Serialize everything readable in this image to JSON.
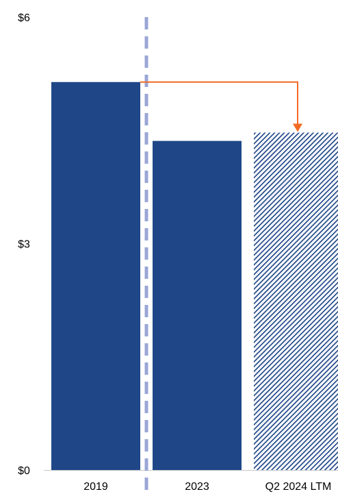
{
  "chart_data": {
    "type": "bar",
    "categories": [
      "2019",
      "2023",
      "Q2 2024 LTM"
    ],
    "values": [
      5.14,
      4.36,
      4.47
    ],
    "bar_styles": [
      "solid",
      "solid",
      "hatched"
    ],
    "ylim": [
      0,
      6
    ],
    "yticks": [
      {
        "value": 0,
        "label": "$0"
      },
      {
        "value": 3,
        "label": "$3"
      },
      {
        "value": 6,
        "label": "$6"
      }
    ],
    "grid": false,
    "annotations": [
      {
        "type": "divider",
        "style": "dashed",
        "between": [
          "2019",
          "2023"
        ]
      },
      {
        "type": "arrow",
        "from": "2019",
        "to": "Q2 2024 LTM"
      }
    ],
    "colors": {
      "bar": "#1f4788",
      "divider": "#9aa6d6",
      "arrow": "#f26a21",
      "axis": "#c8c8c8"
    }
  }
}
